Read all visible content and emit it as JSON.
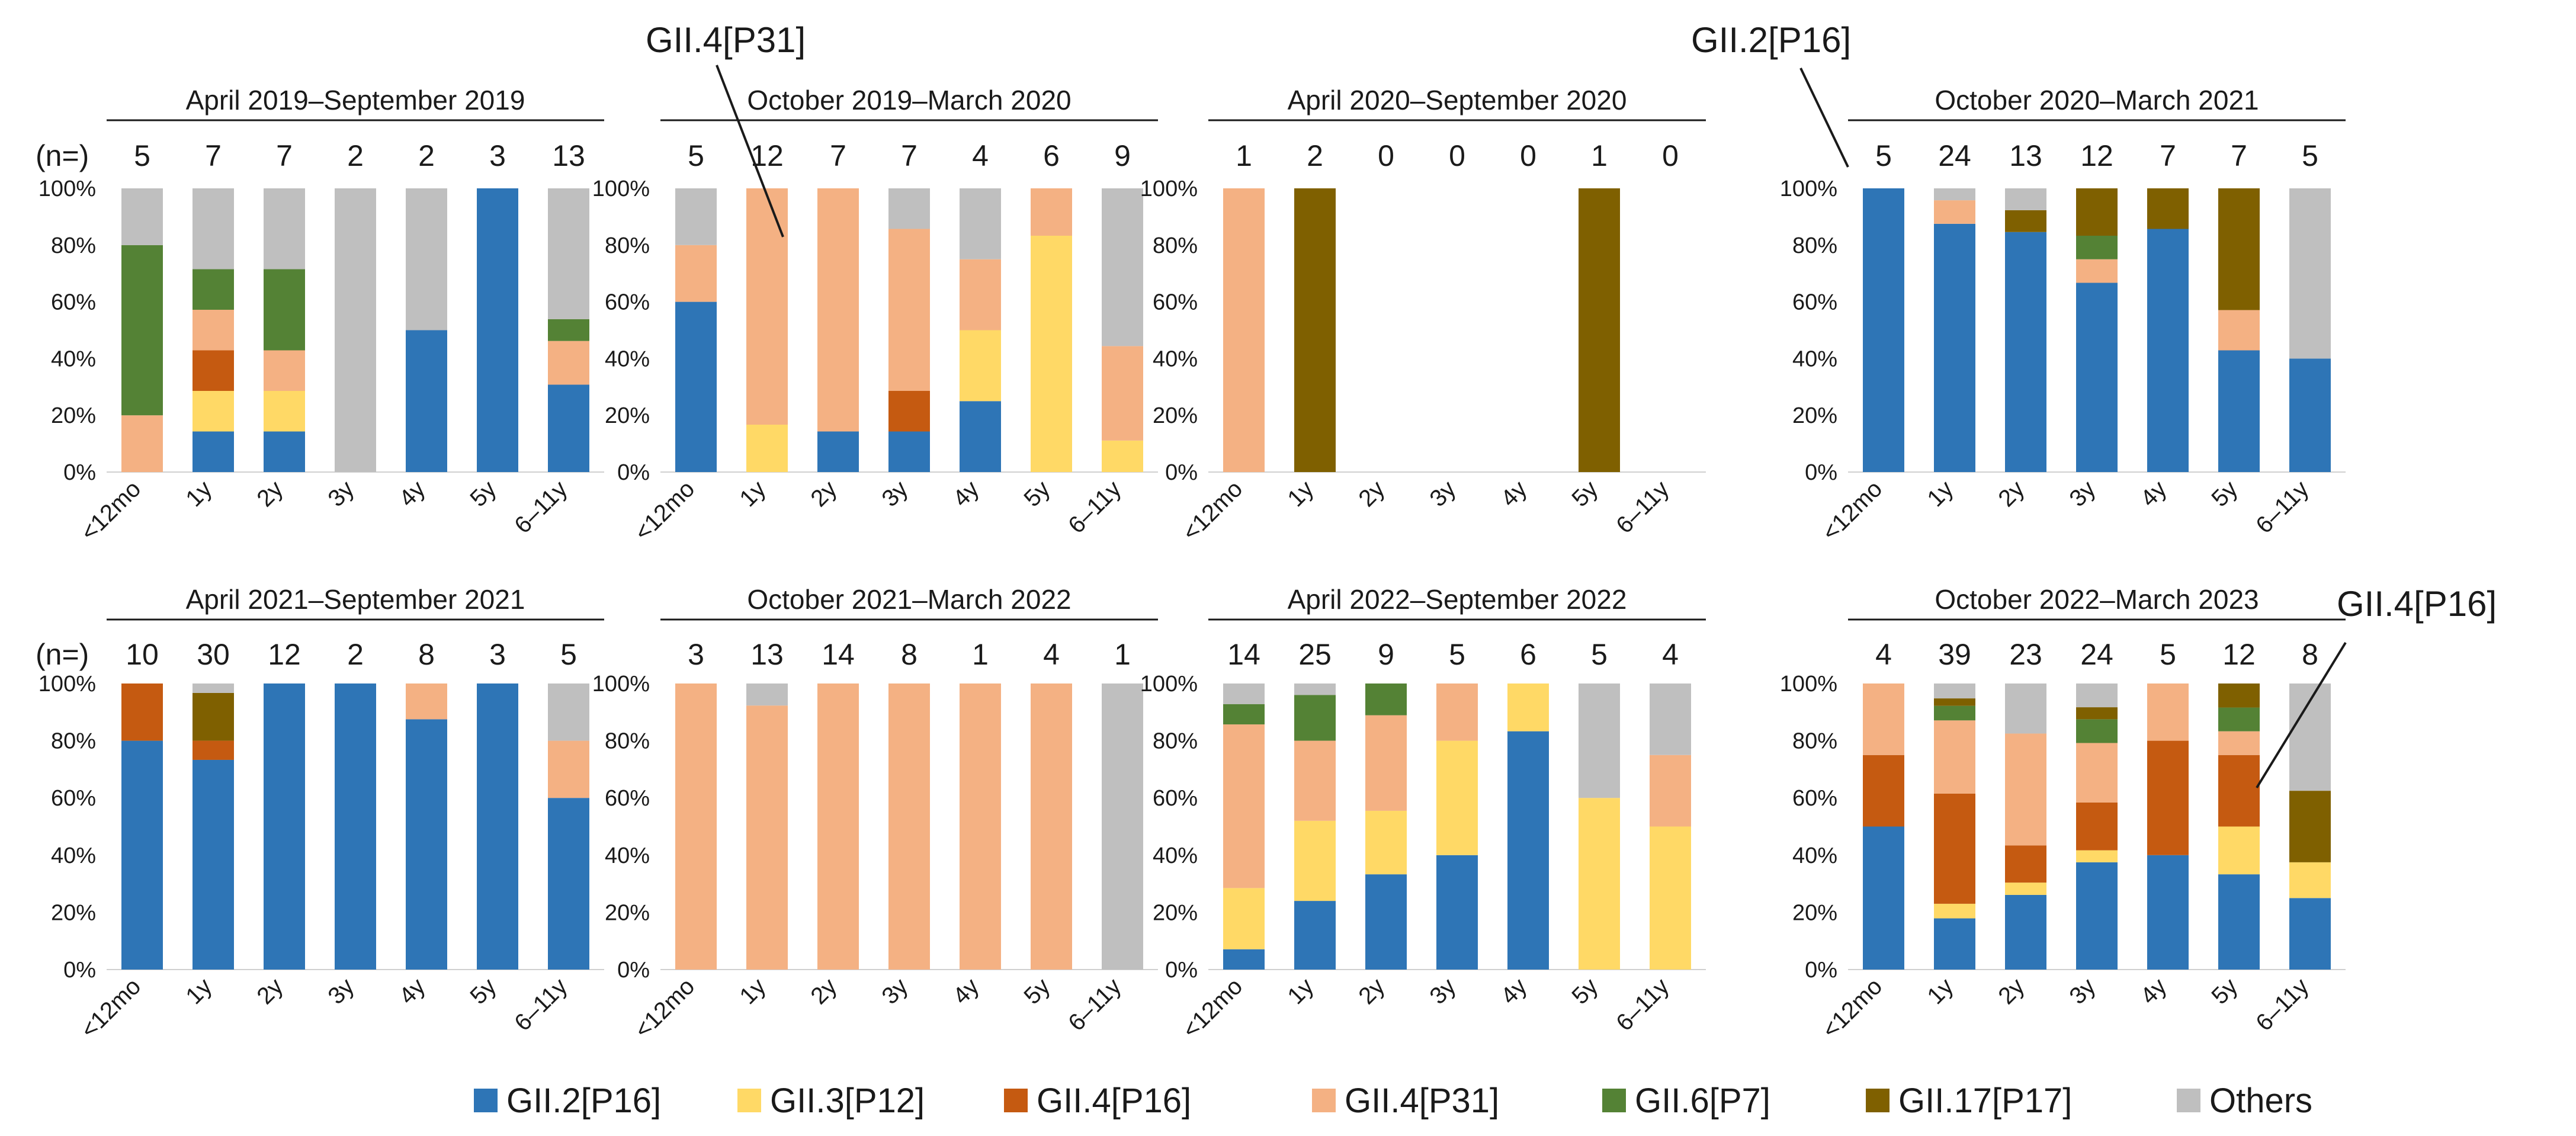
{
  "chart_data": {
    "type": "bar",
    "stacked": true,
    "percent": true,
    "categories": [
      "<12mo",
      "1y",
      "2y",
      "3y",
      "4y",
      "5y",
      "6–11y"
    ],
    "y_ticks": [
      "0%",
      "20%",
      "40%",
      "60%",
      "80%",
      "100%"
    ],
    "ylim": [
      0,
      100
    ],
    "n_label": "(n=)",
    "legend": [
      {
        "name": "GII.2[P16]",
        "color": "#2e75b6"
      },
      {
        "name": "GII.3[P12]",
        "color": "#ffd966"
      },
      {
        "name": "GII.4[P16]",
        "color": "#c55a11"
      },
      {
        "name": "GII.4[P31]",
        "color": "#f4b183"
      },
      {
        "name": "GII.6[P7]",
        "color": "#548235"
      },
      {
        "name": "GII.17[P17]",
        "color": "#7f6000"
      },
      {
        "name": "Others",
        "color": "#bfbfbf"
      }
    ],
    "callouts": [
      "GII.4[P31]",
      "GII.2[P16]",
      "GII.4[P16]"
    ],
    "panels": [
      {
        "title": "April 2019–September 2019",
        "n": [
          "5",
          "7",
          "7",
          "2",
          "2",
          "3",
          "13"
        ],
        "bars": [
          [
            0,
            0,
            0,
            20,
            60,
            0,
            20
          ],
          [
            14.3,
            14.3,
            14.3,
            14.3,
            14.3,
            0,
            28.5
          ],
          [
            14.3,
            14.3,
            0,
            14.3,
            28.6,
            0,
            28.5
          ],
          [
            0,
            0,
            0,
            0,
            0,
            0,
            100
          ],
          [
            50,
            0,
            0,
            0,
            0,
            0,
            50
          ],
          [
            100,
            0,
            0,
            0,
            0,
            0,
            0
          ],
          [
            30.8,
            0,
            0,
            15.4,
            7.7,
            0,
            46.1
          ]
        ]
      },
      {
        "title": "October 2019–March 2020",
        "n": [
          "5",
          "12",
          "7",
          "7",
          "4",
          "6",
          "9"
        ],
        "bars": [
          [
            60,
            0,
            0,
            20,
            0,
            0,
            20
          ],
          [
            0,
            16.7,
            0,
            83.3,
            0,
            0,
            0
          ],
          [
            14.3,
            0,
            0,
            85.7,
            0,
            0,
            0
          ],
          [
            14.3,
            0,
            14.3,
            57.1,
            0,
            0,
            14.3
          ],
          [
            25,
            25,
            0,
            25,
            0,
            0,
            25
          ],
          [
            0,
            83.3,
            0,
            16.7,
            0,
            0,
            0
          ],
          [
            0,
            11.1,
            0,
            33.3,
            0,
            0,
            55.6
          ]
        ]
      },
      {
        "title": "April 2020–September 2020",
        "n": [
          "1",
          "2",
          "0",
          "0",
          "0",
          "1",
          "0"
        ],
        "bars": [
          [
            0,
            0,
            0,
            100,
            0,
            0,
            0
          ],
          [
            0,
            0,
            0,
            0,
            0,
            100,
            0
          ],
          [
            0,
            0,
            0,
            0,
            0,
            0,
            0
          ],
          [
            0,
            0,
            0,
            0,
            0,
            0,
            0
          ],
          [
            0,
            0,
            0,
            0,
            0,
            0,
            0
          ],
          [
            0,
            0,
            0,
            0,
            0,
            100,
            0
          ],
          [
            0,
            0,
            0,
            0,
            0,
            0,
            0
          ]
        ]
      },
      {
        "title": "October 2020–March 2021",
        "n": [
          "5",
          "24",
          "13",
          "12",
          "7",
          "7",
          "5"
        ],
        "bars": [
          [
            100,
            0,
            0,
            0,
            0,
            0,
            0
          ],
          [
            87.5,
            0,
            0,
            8.3,
            0,
            0,
            4.2
          ],
          [
            84.6,
            0,
            0,
            0,
            0,
            7.7,
            7.7
          ],
          [
            66.7,
            0,
            0,
            8.3,
            8.3,
            16.7,
            0
          ],
          [
            85.7,
            0,
            0,
            0,
            0,
            14.3,
            0
          ],
          [
            42.9,
            0,
            0,
            14.2,
            0,
            42.9,
            0
          ],
          [
            40,
            0,
            0,
            0,
            0,
            0,
            60
          ]
        ]
      },
      {
        "title": "April 2021–September 2021",
        "n": [
          "10",
          "30",
          "12",
          "2",
          "8",
          "3",
          "5"
        ],
        "bars": [
          [
            80,
            0,
            20,
            0,
            0,
            0,
            0
          ],
          [
            73.3,
            0,
            6.7,
            0,
            0,
            16.7,
            3.3
          ],
          [
            100,
            0,
            0,
            0,
            0,
            0,
            0
          ],
          [
            100,
            0,
            0,
            0,
            0,
            0,
            0
          ],
          [
            87.5,
            0,
            0,
            12.5,
            0,
            0,
            0
          ],
          [
            100,
            0,
            0,
            0,
            0,
            0,
            0
          ],
          [
            60,
            0,
            0,
            20,
            0,
            0,
            20
          ]
        ]
      },
      {
        "title": "October 2021–March 2022",
        "n": [
          "3",
          "13",
          "14",
          "8",
          "1",
          "4",
          "1"
        ],
        "bars": [
          [
            0,
            0,
            0,
            100,
            0,
            0,
            0
          ],
          [
            0,
            0,
            0,
            92.3,
            0,
            0,
            7.7
          ],
          [
            0,
            0,
            0,
            100,
            0,
            0,
            0
          ],
          [
            0,
            0,
            0,
            100,
            0,
            0,
            0
          ],
          [
            0,
            0,
            0,
            100,
            0,
            0,
            0
          ],
          [
            0,
            0,
            0,
            100,
            0,
            0,
            0
          ],
          [
            0,
            0,
            0,
            0,
            0,
            0,
            100
          ]
        ]
      },
      {
        "title": "April 2022–September 2022",
        "n": [
          "14",
          "25",
          "9",
          "5",
          "6",
          "5",
          "4"
        ],
        "bars": [
          [
            7.1,
            21.4,
            0,
            57.2,
            7.1,
            0,
            7.2
          ],
          [
            24,
            28,
            0,
            28,
            16,
            0,
            4
          ],
          [
            33.3,
            22.2,
            0,
            33.4,
            11.1,
            0,
            0
          ],
          [
            40,
            40,
            0,
            20,
            0,
            0,
            0
          ],
          [
            83.3,
            16.7,
            0,
            0,
            0,
            0,
            0
          ],
          [
            0,
            60,
            0,
            0,
            0,
            0,
            40
          ],
          [
            0,
            50,
            0,
            25,
            0,
            0,
            25
          ]
        ]
      },
      {
        "title": "October 2022–March 2023",
        "n": [
          "4",
          "39",
          "23",
          "24",
          "5",
          "12",
          "8"
        ],
        "bars": [
          [
            50,
            0,
            25,
            25,
            0,
            0,
            0
          ],
          [
            17.9,
            5.1,
            38.5,
            25.6,
            5.1,
            2.6,
            5.2
          ],
          [
            26.1,
            4.3,
            13,
            39.1,
            0,
            0,
            17.5
          ],
          [
            37.5,
            4.2,
            16.7,
            20.8,
            8.3,
            4.2,
            8.3
          ],
          [
            40,
            0,
            40,
            20,
            0,
            0,
            0
          ],
          [
            33.3,
            16.7,
            25,
            8.3,
            8.3,
            8.4,
            0
          ],
          [
            25,
            12.5,
            0,
            0,
            0,
            25,
            37.5
          ]
        ]
      }
    ]
  }
}
